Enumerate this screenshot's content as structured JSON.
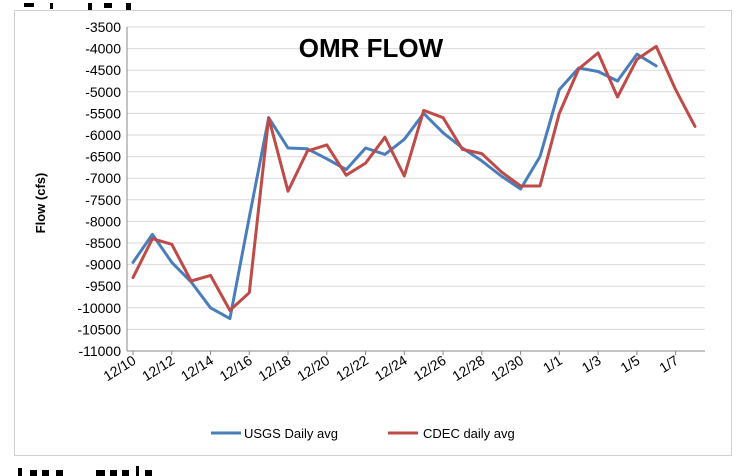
{
  "chart_data": {
    "type": "line",
    "title": "OMR FLOW",
    "xlabel": "",
    "ylabel": "Flow (cfs)",
    "ylim": [
      -11000,
      -3500
    ],
    "y_ticks": [
      -3500,
      -4000,
      -4500,
      -5000,
      -5500,
      -6000,
      -6500,
      -7000,
      -7500,
      -8000,
      -8500,
      -9000,
      -9500,
      -10000,
      -10500,
      -11000
    ],
    "categories": [
      "12/10",
      "12/11",
      "12/12",
      "12/13",
      "12/14",
      "12/15",
      "12/16",
      "12/17",
      "12/18",
      "12/19",
      "12/20",
      "12/21",
      "12/22",
      "12/23",
      "12/24",
      "12/25",
      "12/26",
      "12/27",
      "12/28",
      "12/29",
      "12/30",
      "12/31",
      "1/1",
      "1/2",
      "1/3",
      "1/4",
      "1/5",
      "1/6",
      "1/7",
      "1/8"
    ],
    "x_tick_labels": [
      "12/10",
      "12/12",
      "12/14",
      "12/16",
      "12/18",
      "12/20",
      "12/22",
      "12/24",
      "12/26",
      "12/28",
      "12/30",
      "1/1",
      "1/3",
      "1/5",
      "1/7"
    ],
    "grid": true,
    "legend_position": "bottom",
    "series": [
      {
        "name": "USGS Daily avg",
        "color": "#4a7ebb",
        "values": [
          -8950,
          -8300,
          -8950,
          -9400,
          -10000,
          -10250,
          -7900,
          -5600,
          -6300,
          -6320,
          -6550,
          -6800,
          -6300,
          -6450,
          -6100,
          -5500,
          -5950,
          -6300,
          -6600,
          -6950,
          -7250,
          -6500,
          -4950,
          -4450,
          -4530,
          -4750,
          -4130,
          -4400,
          null,
          null
        ]
      },
      {
        "name": "CDEC daily avg",
        "color": "#be4b48",
        "values": [
          -9300,
          -8400,
          -8530,
          -9380,
          -9250,
          -10060,
          -9650,
          -5600,
          -7300,
          -6370,
          -6230,
          -6930,
          -6650,
          -6050,
          -6950,
          -5430,
          -5600,
          -6330,
          -6430,
          -6850,
          -7180,
          -7180,
          -5500,
          -4470,
          -4100,
          -5120,
          -4250,
          -3950,
          -4950,
          -5800
        ]
      }
    ]
  }
}
